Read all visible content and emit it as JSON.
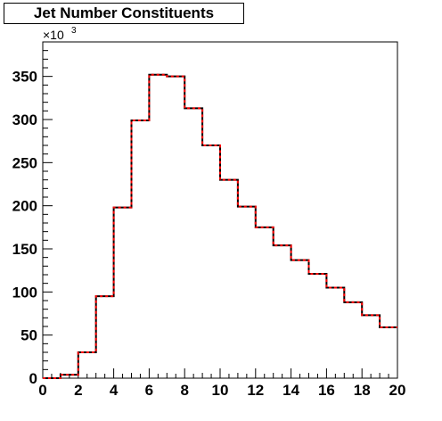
{
  "chart_data": {
    "type": "bar",
    "style": "step-histogram",
    "title": "Jet Number Constituents",
    "xlabel": "",
    "ylabel": "",
    "xlim": [
      0,
      20
    ],
    "ylim": [
      0,
      390
    ],
    "y_multiplier": "×10",
    "y_multiplier_exponent": "3",
    "x_ticks": [
      0,
      2,
      4,
      6,
      8,
      10,
      12,
      14,
      16,
      18,
      20
    ],
    "y_ticks": [
      0,
      50,
      100,
      150,
      200,
      250,
      300,
      350
    ],
    "bin_edges": [
      0,
      1,
      2,
      3,
      4,
      5,
      6,
      7,
      8,
      9,
      10,
      11,
      12,
      13,
      14,
      15,
      16,
      17,
      18,
      19,
      20
    ],
    "values": [
      0,
      4,
      30,
      95,
      198,
      299,
      352,
      350,
      313,
      270,
      230,
      199,
      175,
      154,
      137,
      121,
      105,
      88,
      73,
      59
    ],
    "series": [
      {
        "color": "#000000",
        "dash": "solid"
      },
      {
        "color": "#ff0000",
        "dash": "dashed"
      }
    ],
    "grid": false
  }
}
